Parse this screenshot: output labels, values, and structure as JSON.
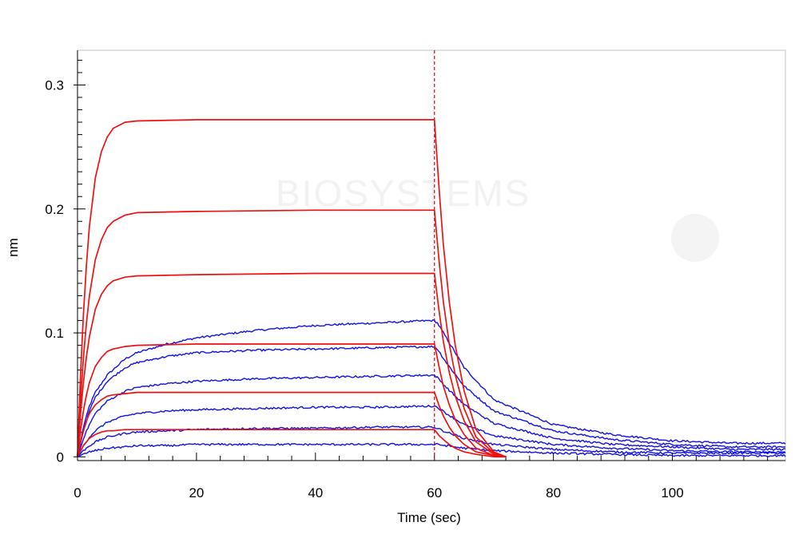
{
  "chart_data": {
    "type": "line",
    "title": "",
    "xlabel": "Time (sec)",
    "ylabel": "nm",
    "xlim": [
      0,
      119
    ],
    "ylim": [
      -0.003,
      0.328
    ],
    "x_ticks": [
      0,
      20,
      40,
      60,
      80,
      100
    ],
    "x_tick_labels": [
      "0",
      "20",
      "40",
      "60",
      "80",
      "100"
    ],
    "y_ticks": [
      0,
      0.1,
      0.2,
      0.3
    ],
    "y_tick_labels": [
      "0",
      "0.1",
      "0.2",
      "0.3"
    ],
    "grid": false,
    "legend": "none",
    "association_end_time": 60,
    "watermark": "BIOSYSTEMS",
    "colors": {
      "measured": "#1010e8",
      "fit": "#ee1111",
      "frame": "#c0c0c0"
    },
    "series": [
      {
        "measured": [
          [
            0,
            0
          ],
          [
            1,
            0.024
          ],
          [
            2,
            0.041
          ],
          [
            3,
            0.052
          ],
          [
            5,
            0.066
          ],
          [
            8,
            0.079
          ],
          [
            10,
            0.084
          ],
          [
            15,
            0.091
          ],
          [
            20,
            0.096
          ],
          [
            30,
            0.102
          ],
          [
            40,
            0.106
          ],
          [
            50,
            0.108
          ],
          [
            59.9,
            0.11
          ],
          [
            60.5,
            0.108
          ],
          [
            62,
            0.096
          ],
          [
            65,
            0.072
          ],
          [
            70,
            0.046
          ],
          [
            80,
            0.026
          ],
          [
            90,
            0.018
          ],
          [
            100,
            0.013
          ],
          [
            110,
            0.011
          ],
          [
            119,
            0.011
          ]
        ],
        "fit": [
          [
            0,
            0
          ],
          [
            0.5,
            0.065
          ],
          [
            1,
            0.115
          ],
          [
            1.5,
            0.155
          ],
          [
            2,
            0.186
          ],
          [
            3,
            0.225
          ],
          [
            4,
            0.246
          ],
          [
            5,
            0.258
          ],
          [
            6,
            0.265
          ],
          [
            8,
            0.27
          ],
          [
            10,
            0.271
          ],
          [
            20,
            0.272
          ],
          [
            40,
            0.272
          ],
          [
            60,
            0.272
          ],
          [
            60.3,
            0.25
          ],
          [
            60.8,
            0.215
          ],
          [
            61.5,
            0.171
          ],
          [
            62.5,
            0.125
          ],
          [
            63.5,
            0.09
          ],
          [
            65,
            0.053
          ],
          [
            67,
            0.022
          ],
          [
            70,
            0.004
          ],
          [
            72,
            0.0
          ]
        ]
      },
      {
        "measured": [
          [
            0,
            0
          ],
          [
            1,
            0.021
          ],
          [
            2,
            0.037
          ],
          [
            3,
            0.048
          ],
          [
            5,
            0.061
          ],
          [
            8,
            0.072
          ],
          [
            10,
            0.076
          ],
          [
            15,
            0.081
          ],
          [
            20,
            0.084
          ],
          [
            30,
            0.086
          ],
          [
            40,
            0.087
          ],
          [
            50,
            0.088
          ],
          [
            59.9,
            0.089
          ],
          [
            60.5,
            0.087
          ],
          [
            62,
            0.076
          ],
          [
            65,
            0.057
          ],
          [
            70,
            0.037
          ],
          [
            80,
            0.021
          ],
          [
            90,
            0.014
          ],
          [
            100,
            0.01
          ],
          [
            110,
            0.008
          ],
          [
            119,
            0.008
          ]
        ],
        "fit": [
          [
            0,
            0
          ],
          [
            0.5,
            0.045
          ],
          [
            1,
            0.08
          ],
          [
            1.5,
            0.108
          ],
          [
            2,
            0.13
          ],
          [
            3,
            0.159
          ],
          [
            4,
            0.175
          ],
          [
            5,
            0.185
          ],
          [
            6,
            0.19
          ],
          [
            8,
            0.195
          ],
          [
            10,
            0.197
          ],
          [
            20,
            0.198
          ],
          [
            40,
            0.199
          ],
          [
            60,
            0.199
          ],
          [
            60.3,
            0.183
          ],
          [
            60.8,
            0.157
          ],
          [
            61.5,
            0.125
          ],
          [
            62.5,
            0.091
          ],
          [
            63.5,
            0.066
          ],
          [
            65,
            0.039
          ],
          [
            67,
            0.016
          ],
          [
            70,
            0.003
          ],
          [
            72,
            0.0
          ]
        ]
      },
      {
        "measured": [
          [
            0,
            0
          ],
          [
            1,
            0.015
          ],
          [
            2,
            0.026
          ],
          [
            3,
            0.035
          ],
          [
            5,
            0.045
          ],
          [
            8,
            0.053
          ],
          [
            10,
            0.056
          ],
          [
            15,
            0.059
          ],
          [
            20,
            0.061
          ],
          [
            30,
            0.063
          ],
          [
            40,
            0.064
          ],
          [
            50,
            0.065
          ],
          [
            59.9,
            0.066
          ],
          [
            60.5,
            0.064
          ],
          [
            62,
            0.056
          ],
          [
            65,
            0.042
          ],
          [
            70,
            0.027
          ],
          [
            80,
            0.015
          ],
          [
            90,
            0.01
          ],
          [
            100,
            0.008
          ],
          [
            110,
            0.006
          ],
          [
            119,
            0.006
          ]
        ],
        "fit": [
          [
            0,
            0
          ],
          [
            0.5,
            0.034
          ],
          [
            1,
            0.06
          ],
          [
            1.5,
            0.081
          ],
          [
            2,
            0.097
          ],
          [
            3,
            0.119
          ],
          [
            4,
            0.131
          ],
          [
            5,
            0.138
          ],
          [
            6,
            0.142
          ],
          [
            8,
            0.145
          ],
          [
            10,
            0.146
          ],
          [
            20,
            0.147
          ],
          [
            40,
            0.148
          ],
          [
            60,
            0.148
          ],
          [
            60.3,
            0.136
          ],
          [
            60.8,
            0.117
          ],
          [
            61.5,
            0.093
          ],
          [
            62.5,
            0.068
          ],
          [
            63.5,
            0.049
          ],
          [
            65,
            0.029
          ],
          [
            67,
            0.012
          ],
          [
            70,
            0.002
          ],
          [
            72,
            0.0
          ]
        ]
      },
      {
        "measured": [
          [
            0,
            0
          ],
          [
            1,
            0.009
          ],
          [
            2,
            0.016
          ],
          [
            3,
            0.021
          ],
          [
            5,
            0.028
          ],
          [
            8,
            0.033
          ],
          [
            10,
            0.035
          ],
          [
            15,
            0.037
          ],
          [
            20,
            0.038
          ],
          [
            30,
            0.039
          ],
          [
            40,
            0.04
          ],
          [
            50,
            0.04
          ],
          [
            59.9,
            0.041
          ],
          [
            60.5,
            0.04
          ],
          [
            62,
            0.035
          ],
          [
            65,
            0.026
          ],
          [
            70,
            0.017
          ],
          [
            80,
            0.01
          ],
          [
            90,
            0.007
          ],
          [
            100,
            0.005
          ],
          [
            110,
            0.004
          ],
          [
            119,
            0.004
          ]
        ],
        "fit": [
          [
            0,
            0
          ],
          [
            0.5,
            0.021
          ],
          [
            1,
            0.037
          ],
          [
            1.5,
            0.05
          ],
          [
            2,
            0.06
          ],
          [
            3,
            0.073
          ],
          [
            4,
            0.08
          ],
          [
            5,
            0.085
          ],
          [
            6,
            0.087
          ],
          [
            8,
            0.089
          ],
          [
            10,
            0.09
          ],
          [
            20,
            0.091
          ],
          [
            40,
            0.091
          ],
          [
            60,
            0.091
          ],
          [
            60.3,
            0.084
          ],
          [
            60.8,
            0.072
          ],
          [
            61.5,
            0.057
          ],
          [
            62.5,
            0.042
          ],
          [
            63.5,
            0.03
          ],
          [
            65,
            0.018
          ],
          [
            67,
            0.007
          ],
          [
            70,
            0.001
          ],
          [
            72,
            0.0
          ]
        ]
      },
      {
        "measured": [
          [
            0,
            0
          ],
          [
            1,
            0.005
          ],
          [
            2,
            0.009
          ],
          [
            3,
            0.012
          ],
          [
            5,
            0.016
          ],
          [
            8,
            0.019
          ],
          [
            10,
            0.02
          ],
          [
            15,
            0.021
          ],
          [
            20,
            0.022
          ],
          [
            30,
            0.023
          ],
          [
            40,
            0.023
          ],
          [
            50,
            0.024
          ],
          [
            59.9,
            0.024
          ],
          [
            60.5,
            0.023
          ],
          [
            62,
            0.02
          ],
          [
            65,
            0.015
          ],
          [
            70,
            0.01
          ],
          [
            80,
            0.006
          ],
          [
            90,
            0.004
          ],
          [
            100,
            0.003
          ],
          [
            110,
            0.003
          ],
          [
            119,
            0.003
          ]
        ],
        "fit": [
          [
            0,
            0
          ],
          [
            0.5,
            0.012
          ],
          [
            1,
            0.021
          ],
          [
            1.5,
            0.029
          ],
          [
            2,
            0.035
          ],
          [
            3,
            0.042
          ],
          [
            4,
            0.046
          ],
          [
            5,
            0.049
          ],
          [
            6,
            0.05
          ],
          [
            8,
            0.051
          ],
          [
            10,
            0.052
          ],
          [
            20,
            0.052
          ],
          [
            40,
            0.052
          ],
          [
            60,
            0.052
          ],
          [
            60.3,
            0.048
          ],
          [
            60.8,
            0.041
          ],
          [
            61.5,
            0.033
          ],
          [
            62.5,
            0.024
          ],
          [
            63.5,
            0.017
          ],
          [
            65,
            0.01
          ],
          [
            67,
            0.004
          ],
          [
            70,
            0.001
          ],
          [
            72,
            0.0
          ]
        ]
      },
      {
        "measured": [
          [
            0,
            0
          ],
          [
            1,
            0.002
          ],
          [
            2,
            0.004
          ],
          [
            3,
            0.005
          ],
          [
            5,
            0.007
          ],
          [
            8,
            0.008
          ],
          [
            10,
            0.009
          ],
          [
            15,
            0.009
          ],
          [
            20,
            0.01
          ],
          [
            30,
            0.01
          ],
          [
            40,
            0.01
          ],
          [
            50,
            0.01
          ],
          [
            59.9,
            0.01
          ],
          [
            60.5,
            0.01
          ],
          [
            62,
            0.009
          ],
          [
            65,
            0.007
          ],
          [
            70,
            0.005
          ],
          [
            80,
            0.003
          ],
          [
            90,
            0.002
          ],
          [
            100,
            0.001
          ],
          [
            110,
            0.001
          ],
          [
            119,
            0.001
          ]
        ],
        "fit": [
          [
            0,
            0
          ],
          [
            0.5,
            0.005
          ],
          [
            1,
            0.009
          ],
          [
            1.5,
            0.012
          ],
          [
            2,
            0.015
          ],
          [
            3,
            0.018
          ],
          [
            4,
            0.02
          ],
          [
            5,
            0.021
          ],
          [
            6,
            0.021
          ],
          [
            8,
            0.022
          ],
          [
            10,
            0.022
          ],
          [
            20,
            0.022
          ],
          [
            40,
            0.022
          ],
          [
            60,
            0.022
          ],
          [
            60.3,
            0.02
          ],
          [
            60.8,
            0.017
          ],
          [
            61.5,
            0.014
          ],
          [
            62.5,
            0.01
          ],
          [
            63.5,
            0.007
          ],
          [
            65,
            0.004
          ],
          [
            67,
            0.002
          ],
          [
            70,
            0.0
          ],
          [
            72,
            0.0
          ]
        ]
      }
    ]
  }
}
